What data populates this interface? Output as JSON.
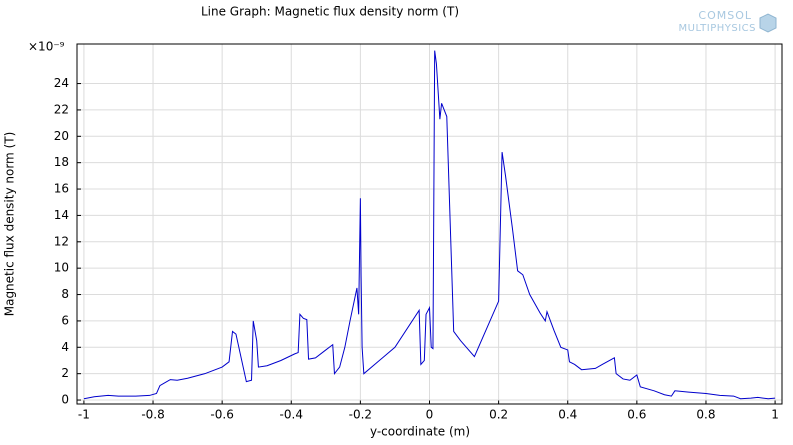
{
  "chart_data": {
    "type": "line",
    "title": "Line Graph: Magnetic flux density norm (T)",
    "xlabel": "y-coordinate (m)",
    "ylabel": "Magnetic flux density norm (T)",
    "y_multiplier": "×10⁻⁹",
    "color": "#0000cc",
    "grid": true,
    "xlim": [
      -1.02,
      1.02
    ],
    "ylim": [
      -0.3,
      27
    ],
    "xticks": [
      -1,
      -0.8,
      -0.6,
      -0.4,
      -0.2,
      0,
      0.2,
      0.4,
      0.6,
      0.8,
      1
    ],
    "yticks": [
      0,
      2,
      4,
      6,
      8,
      10,
      12,
      14,
      16,
      18,
      20,
      22,
      24
    ],
    "x": [
      -1,
      -0.97,
      -0.93,
      -0.9,
      -0.85,
      -0.81,
      -0.79,
      -0.78,
      -0.75,
      -0.73,
      -0.7,
      -0.65,
      -0.6,
      -0.58,
      -0.57,
      -0.56,
      -0.53,
      -0.515,
      -0.51,
      -0.5,
      -0.495,
      -0.47,
      -0.43,
      -0.39,
      -0.38,
      -0.375,
      -0.365,
      -0.355,
      -0.35,
      -0.33,
      -0.3,
      -0.28,
      -0.275,
      -0.26,
      -0.245,
      -0.23,
      -0.21,
      -0.205,
      -0.2,
      -0.198,
      -0.195,
      -0.19,
      -0.1,
      -0.03,
      -0.025,
      -0.015,
      -0.01,
      0,
      0.005,
      0.01,
      0.015,
      0.02,
      0.03,
      0.035,
      0.05,
      0.07,
      0.09,
      0.13,
      0.2,
      0.21,
      0.22,
      0.24,
      0.255,
      0.27,
      0.29,
      0.32,
      0.335,
      0.34,
      0.36,
      0.38,
      0.4,
      0.405,
      0.42,
      0.44,
      0.48,
      0.5,
      0.535,
      0.54,
      0.56,
      0.58,
      0.6,
      0.61,
      0.65,
      0.68,
      0.7,
      0.71,
      0.75,
      0.8,
      0.84,
      0.88,
      0.9,
      0.93,
      0.95,
      0.98,
      1
    ],
    "values": [
      0.1,
      0.25,
      0.35,
      0.3,
      0.3,
      0.35,
      0.5,
      1.1,
      1.55,
      1.5,
      1.65,
      2.0,
      2.5,
      2.9,
      5.2,
      5.0,
      1.4,
      1.5,
      6.0,
      4.5,
      2.5,
      2.6,
      3.0,
      3.5,
      3.6,
      6.5,
      6.2,
      6.1,
      3.1,
      3.2,
      3.8,
      4.2,
      2.0,
      2.5,
      4.0,
      6.0,
      8.5,
      6.5,
      15.3,
      9.5,
      4.0,
      2.0,
      4.0,
      6.8,
      2.7,
      3.0,
      6.5,
      7.0,
      4.0,
      3.9,
      26.5,
      25.5,
      21.3,
      22.5,
      21.5,
      5.2,
      4.5,
      3.3,
      7.5,
      18.8,
      17.0,
      13.0,
      9.8,
      9.5,
      8.0,
      6.6,
      6.0,
      6.7,
      5.3,
      4.0,
      3.8,
      2.9,
      2.7,
      2.3,
      2.4,
      2.7,
      3.2,
      2.0,
      1.6,
      1.5,
      1.9,
      1.0,
      0.7,
      0.4,
      0.3,
      0.7,
      0.6,
      0.5,
      0.35,
      0.3,
      0.1,
      0.15,
      0.2,
      0.1,
      0.15
    ]
  },
  "logo": {
    "line1": "COMSOL",
    "line2": "MULTIPHYSICS"
  }
}
